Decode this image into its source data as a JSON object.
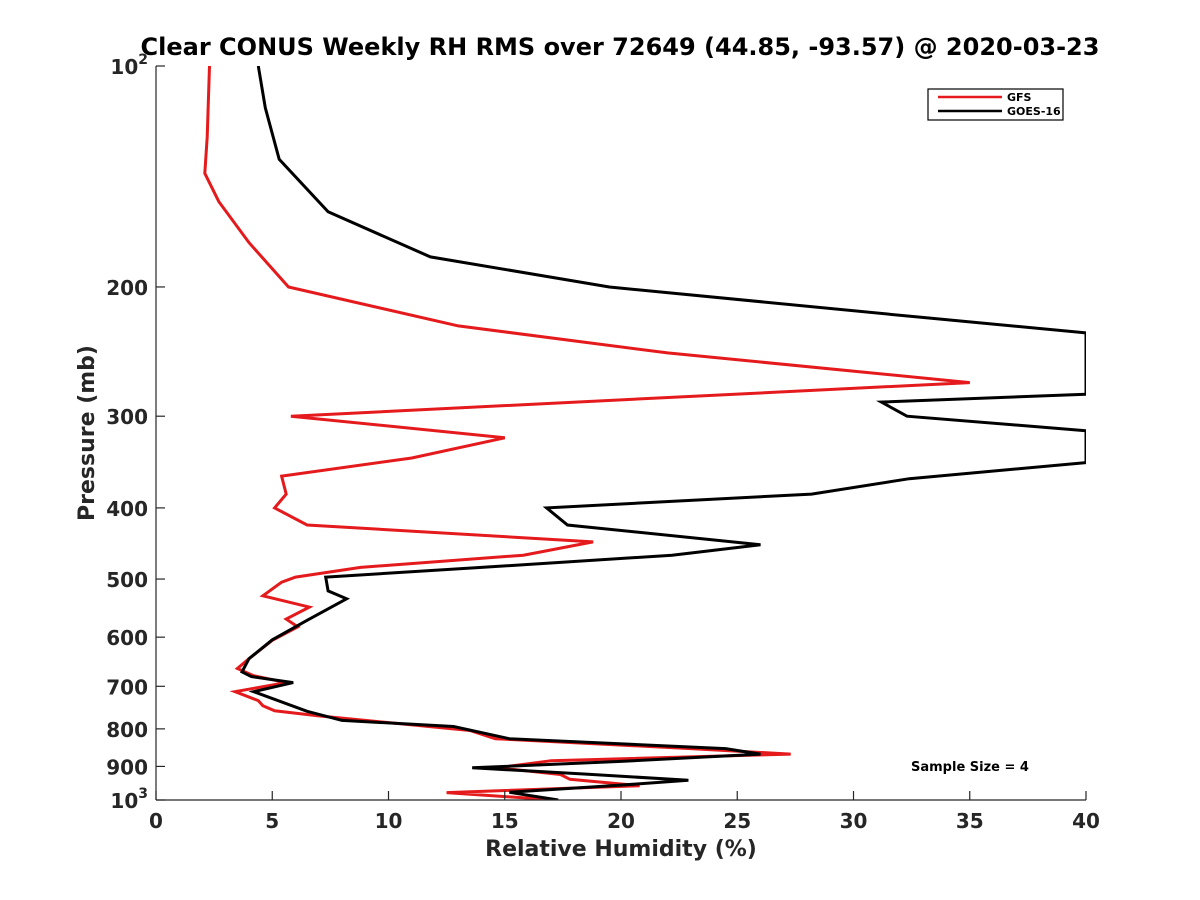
{
  "chart_data": {
    "type": "line",
    "title": "Clear CONUS Weekly RH RMS over 72649 (44.85, -93.57) @ 2020-03-23",
    "xlabel": "Relative Humidity (%)",
    "ylabel": "Pressure (mb)",
    "xlim": [
      0,
      40
    ],
    "ylim": [
      100,
      1000
    ],
    "y_scale": "log",
    "y_reversed": true,
    "x_ticks": [
      0,
      5,
      10,
      15,
      20,
      25,
      30,
      35,
      40
    ],
    "y_ticks": [
      {
        "value": 100,
        "base": "10",
        "exp": "2"
      },
      {
        "value": 200,
        "label": "200"
      },
      {
        "value": 300,
        "label": "300"
      },
      {
        "value": 400,
        "label": "400"
      },
      {
        "value": 500,
        "label": "500"
      },
      {
        "value": 600,
        "label": "600"
      },
      {
        "value": 700,
        "label": "700"
      },
      {
        "value": 800,
        "label": "800"
      },
      {
        "value": 900,
        "label": "900"
      },
      {
        "value": 1000,
        "base": "10",
        "exp": "3"
      }
    ],
    "grid": false,
    "legend_position": "top-right",
    "series": [
      {
        "name": "GFS",
        "color": "#e41a1c",
        "points": [
          [
            2.3,
            100
          ],
          [
            2.2,
            125
          ],
          [
            2.1,
            140
          ],
          [
            2.7,
            153
          ],
          [
            4.0,
            174
          ],
          [
            5.7,
            200
          ],
          [
            13.0,
            226
          ],
          [
            22.0,
            246
          ],
          [
            35.0,
            270
          ],
          [
            5.8,
            300
          ],
          [
            15.0,
            321
          ],
          [
            11.0,
            342
          ],
          [
            5.4,
            362
          ],
          [
            5.6,
            383
          ],
          [
            5.1,
            400
          ],
          [
            6.5,
            422
          ],
          [
            18.8,
            445
          ],
          [
            15.8,
            464
          ],
          [
            8.8,
            482
          ],
          [
            6.0,
            497
          ],
          [
            5.4,
            505
          ],
          [
            4.6,
            527
          ],
          [
            6.6,
            546
          ],
          [
            5.6,
            567
          ],
          [
            6.1,
            581
          ],
          [
            5.0,
            606
          ],
          [
            4.0,
            642
          ],
          [
            3.5,
            662
          ],
          [
            4.2,
            677
          ],
          [
            5.6,
            692
          ],
          [
            3.4,
            712
          ],
          [
            4.4,
            732
          ],
          [
            4.6,
            744
          ],
          [
            5.1,
            756
          ],
          [
            7.0,
            768
          ],
          [
            13.5,
            804
          ],
          [
            14.6,
            825
          ],
          [
            23.0,
            851
          ],
          [
            27.3,
            866
          ],
          [
            17.0,
            884
          ],
          [
            14.7,
            904
          ],
          [
            17.4,
            923
          ],
          [
            17.8,
            937
          ],
          [
            20.8,
            956
          ],
          [
            12.5,
            977
          ],
          [
            17.2,
            1000
          ]
        ]
      },
      {
        "name": "GOES-16",
        "color": "#000000",
        "points": [
          [
            4.4,
            100
          ],
          [
            4.7,
            114
          ],
          [
            5.3,
            134
          ],
          [
            7.4,
            158
          ],
          [
            11.8,
            182
          ],
          [
            19.5,
            200
          ],
          [
            32.9,
            220
          ],
          [
            40.0,
            231
          ],
          [
            40.0,
            280
          ],
          [
            31.2,
            287
          ],
          [
            32.3,
            300
          ],
          [
            40.0,
            314
          ],
          [
            40.0,
            347
          ],
          [
            32.4,
            365
          ],
          [
            28.2,
            383
          ],
          [
            16.8,
            400
          ],
          [
            17.7,
            422
          ],
          [
            26.0,
            449
          ],
          [
            22.2,
            464
          ],
          [
            14.0,
            482
          ],
          [
            7.3,
            497
          ],
          [
            7.4,
            519
          ],
          [
            8.2,
            532
          ],
          [
            6.5,
            569
          ],
          [
            5.0,
            605
          ],
          [
            4.0,
            642
          ],
          [
            3.7,
            669
          ],
          [
            4.1,
            679
          ],
          [
            5.9,
            692
          ],
          [
            4.2,
            712
          ],
          [
            6.5,
            757
          ],
          [
            8.0,
            779
          ],
          [
            12.8,
            794
          ],
          [
            15.2,
            825
          ],
          [
            24.5,
            851
          ],
          [
            26.0,
            866
          ],
          [
            20.0,
            886
          ],
          [
            13.6,
            904
          ],
          [
            18.5,
            922
          ],
          [
            22.9,
            940
          ],
          [
            19.9,
            955
          ],
          [
            15.2,
            976
          ],
          [
            17.3,
            1000
          ]
        ]
      }
    ],
    "annotations": [
      "Sample Size = 4"
    ]
  }
}
